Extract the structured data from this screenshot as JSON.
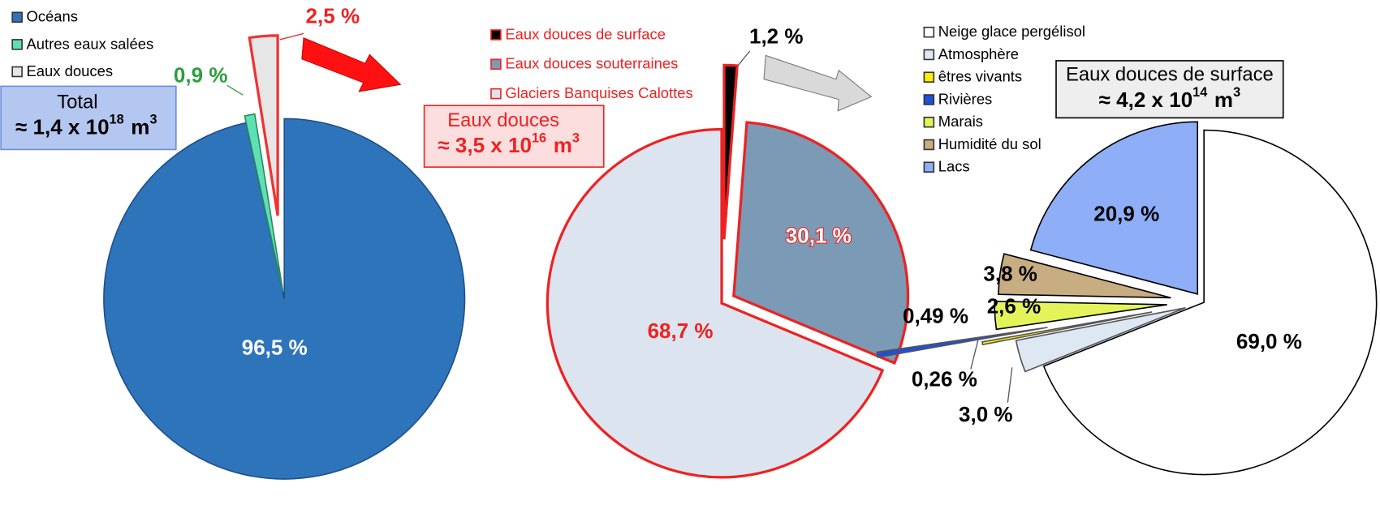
{
  "chart_data": [
    {
      "type": "pie",
      "categories": [
        "Océans",
        "Autres eaux salées",
        "Eaux douces"
      ],
      "values": [
        96.5,
        0.9,
        2.5
      ],
      "value_labels": [
        "96,5 %",
        "0,9 %",
        "2,5 %"
      ],
      "colors": [
        "#2e74bb",
        "#5ee0b5",
        "#e6e6e6"
      ],
      "edgecolors": [
        "#1f4f8a",
        "#2a8a60",
        "#ee3333"
      ],
      "value_label_colors": [
        "#ffffff",
        "#2e9e3e",
        "#ee2222"
      ],
      "annotation": {
        "line1": "Total",
        "base": "≈ 1,4 x 10",
        "exponent": "18",
        "unit": "m",
        "unit_exponent": "3"
      }
    },
    {
      "type": "pie",
      "categories": [
        "Eaux douces de surface",
        "Eaux douces souterraines",
        "Glaciers Banquises Calottes"
      ],
      "values": [
        1.2,
        30.1,
        68.7
      ],
      "value_labels": [
        "1,2 %",
        "30,1 %",
        "68,7 %"
      ],
      "colors": [
        "#000000",
        "#7a9ab5",
        "#dce5ef"
      ],
      "edgecolors": [
        "#ee2222",
        "#ee2222",
        "#ee2222"
      ],
      "value_label_colors": [
        "#000000",
        "#ffffff",
        "#ee2222"
      ],
      "annotation": {
        "line1": "Eaux douces",
        "base": "≈ 3,5 x 10",
        "exponent": "16",
        "unit": "m",
        "unit_exponent": "3"
      }
    },
    {
      "type": "pie",
      "categories": [
        "Neige glace pergélisol",
        "Atmosphère",
        "êtres vivants",
        "Rivières",
        "Marais",
        "Humidité du sol",
        "Lacs"
      ],
      "values": [
        69.0,
        3.0,
        0.26,
        0.49,
        2.6,
        3.8,
        20.9
      ],
      "value_labels": [
        "69,0 %",
        "3,0 %",
        "0,26 %",
        "0,49 %",
        "2,6 %",
        "3,8 %",
        "20,9 %"
      ],
      "colors": [
        "#ffffff",
        "#dde8f3",
        "#ffee00",
        "#1f4fd6",
        "#e4f35a",
        "#c8ad82",
        "#8eaef7"
      ],
      "edgecolors": [
        "#000000",
        "#555555",
        "#555555",
        "#555555",
        "#000000",
        "#000000",
        "#000000"
      ],
      "value_label_colors": [
        "#000000",
        "#000000",
        "#000000",
        "#000000",
        "#000000",
        "#000000",
        "#000000"
      ],
      "annotation": {
        "line1": "Eaux douces de surface",
        "base": "≈ 4,2 x 10",
        "exponent": "14",
        "unit": "m",
        "unit_exponent": "3"
      }
    }
  ]
}
